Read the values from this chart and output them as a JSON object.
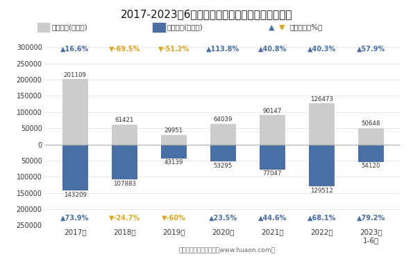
{
  "title": "2017-2023年6月深圳机场保税物流中心进、出口额",
  "years": [
    "2017年",
    "2018年",
    "2019年",
    "2020年",
    "2021年",
    "2022年",
    "2023年\n1-6月"
  ],
  "export_values": [
    201109,
    61421,
    29951,
    64039,
    90147,
    126473,
    50648
  ],
  "import_values": [
    143209,
    107883,
    43139,
    53295,
    77047,
    129512,
    54120
  ],
  "export_growth": [
    16.6,
    -69.5,
    -51.2,
    113.8,
    40.8,
    40.3,
    57.9
  ],
  "import_growth": [
    73.9,
    -24.7,
    -60.0,
    23.5,
    44.6,
    68.1,
    79.2
  ],
  "export_color": "#cccccc",
  "import_color": "#4a6fa5",
  "up_color": "#4a6fa5",
  "down_color": "#daa520",
  "legend_export": "出口总额(万美元)",
  "legend_import": "进口总额(万美元)",
  "legend_growth": "同比增速（%）",
  "footer": "制图：华经产业研究院（www.huaon.com）"
}
